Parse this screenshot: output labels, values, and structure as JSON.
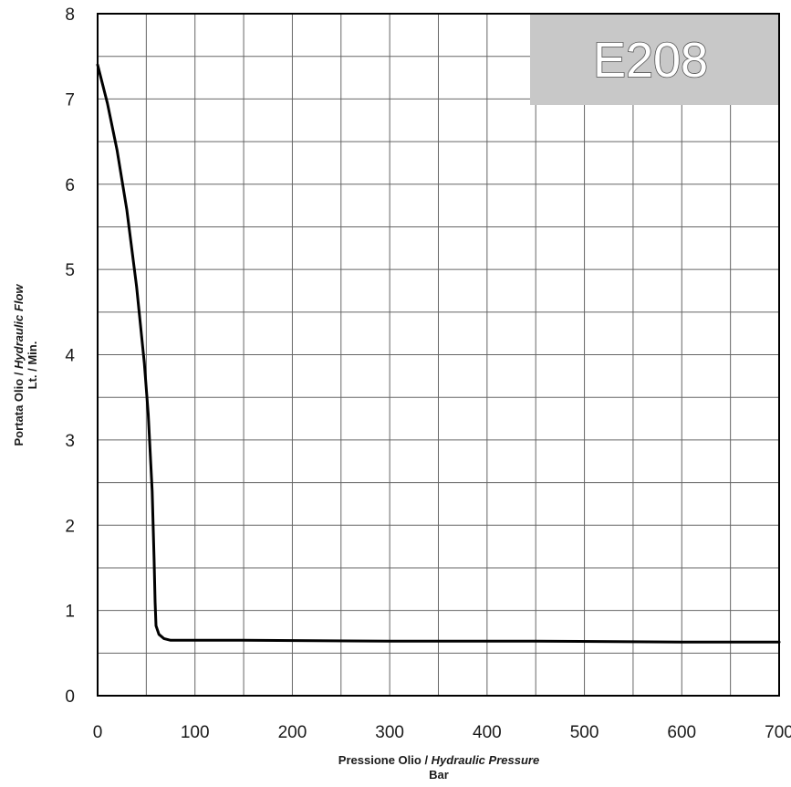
{
  "chart_data": {
    "type": "line",
    "title": "",
    "badge": {
      "text": "E208",
      "color": "#c8c8c8"
    },
    "xlabel": {
      "line1_plain": "Pressione Olio / ",
      "line1_italic": "Hydraulic Pressure",
      "line2": "Bar"
    },
    "ylabel": {
      "line1_plain": "Portata Olio / ",
      "line1_italic": "Hydraulic Flow",
      "line2": "Lt. / Min."
    },
    "xlim": [
      0,
      700
    ],
    "ylim": [
      0,
      8
    ],
    "x_ticks": [
      0,
      100,
      200,
      300,
      400,
      500,
      600,
      700
    ],
    "y_ticks": [
      0,
      1,
      2,
      3,
      4,
      5,
      6,
      7,
      8
    ],
    "x_tick_labels": [
      "0",
      "100",
      "200",
      "300",
      "400",
      "500",
      "600",
      "700"
    ],
    "y_tick_labels": [
      "0",
      "1",
      "2",
      "3",
      "4",
      "5",
      "6",
      "7",
      "8"
    ],
    "grid": true,
    "line_color": "#000000",
    "grid_color": "#666666",
    "series": [
      {
        "x": [
          0,
          10,
          20,
          30,
          40,
          48,
          52,
          56,
          58,
          59,
          60,
          63,
          68,
          75,
          80,
          150,
          300,
          450,
          600,
          700
        ],
        "y": [
          7.4,
          6.95,
          6.4,
          5.7,
          4.8,
          3.9,
          3.3,
          2.4,
          1.6,
          1.1,
          0.82,
          0.72,
          0.67,
          0.65,
          0.65,
          0.65,
          0.64,
          0.64,
          0.63,
          0.63
        ]
      }
    ]
  }
}
